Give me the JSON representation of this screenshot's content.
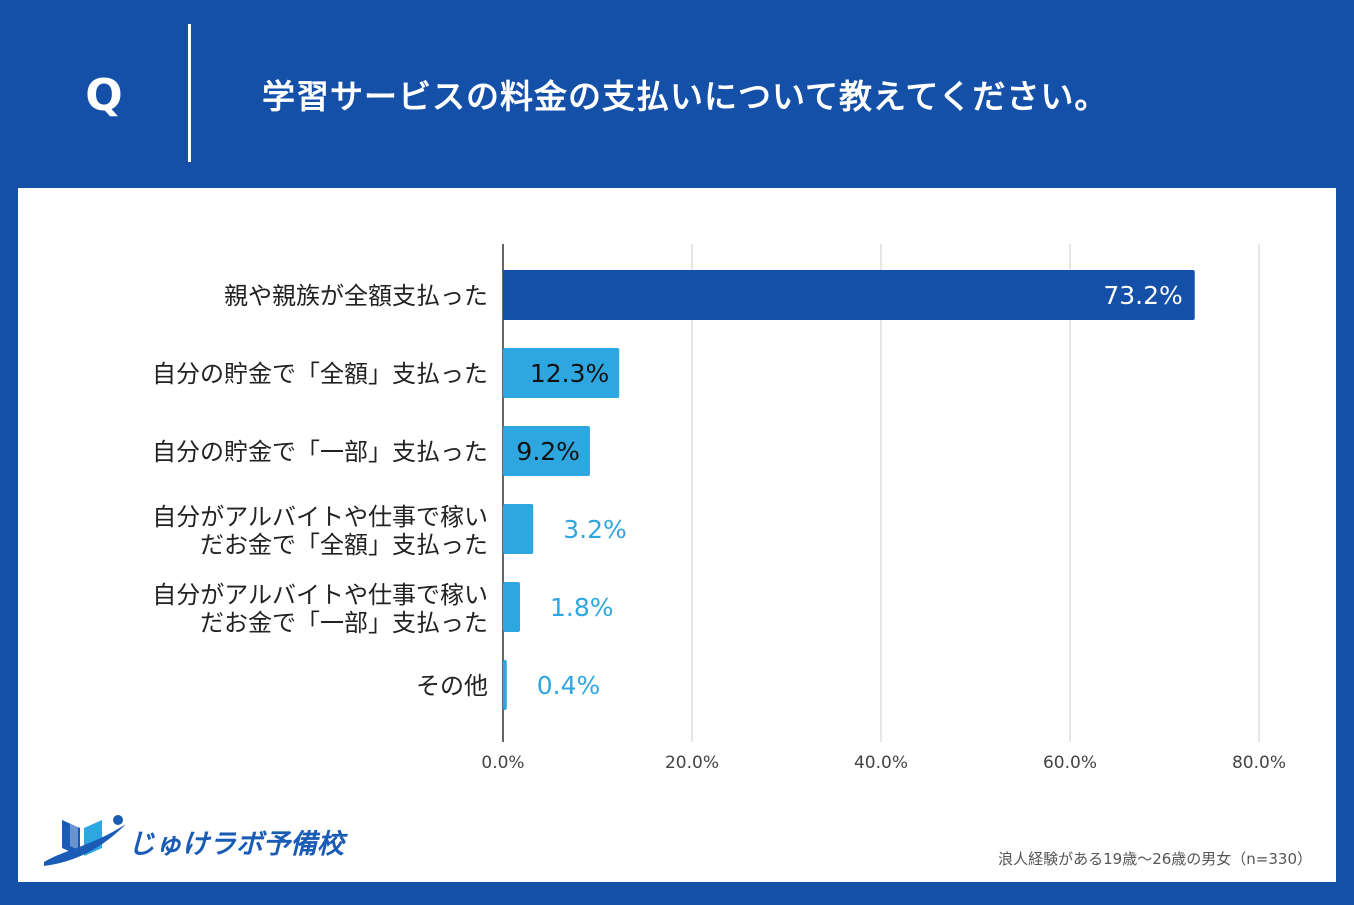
{
  "header": {
    "q_label": "Q",
    "question": "学習サービスの料金の支払いについて教えてください。"
  },
  "colors": {
    "background": "#1550a8",
    "panel": "#ffffff",
    "bar_primary": "#1550a8",
    "bar_secondary": "#2ea7e0",
    "gridline": "#cccccc"
  },
  "chart_data": {
    "type": "bar",
    "orientation": "horizontal",
    "categories": [
      [
        "親や親族が全額支払った"
      ],
      [
        "自分の貯金で「全額」支払った"
      ],
      [
        "自分の貯金で「一部」支払った"
      ],
      [
        "自分がアルバイトや仕事で稼い",
        "だお金で「全額」支払った"
      ],
      [
        "自分がアルバイトや仕事で稼い",
        "だお金で「一部」支払った"
      ],
      [
        "その他"
      ]
    ],
    "values": [
      73.2,
      12.3,
      9.2,
      3.2,
      1.8,
      0.4
    ],
    "value_labels": [
      "73.2%",
      "12.3%",
      "9.2%",
      "3.2%",
      "1.8%",
      "0.4%"
    ],
    "xlim": [
      0,
      80
    ],
    "xticks": [
      0,
      20,
      40,
      60,
      80
    ],
    "xtick_labels": [
      "0.0%",
      "20.0%",
      "40.0%",
      "60.0%",
      "80.0%"
    ],
    "grid": true,
    "xlabel": "",
    "ylabel": ""
  },
  "logo": {
    "icon": "book-swoosh-icon",
    "text": "じゅけラボ予備校"
  },
  "footnote": "浪人経験がある19歳～26歳の男女（n=330）"
}
